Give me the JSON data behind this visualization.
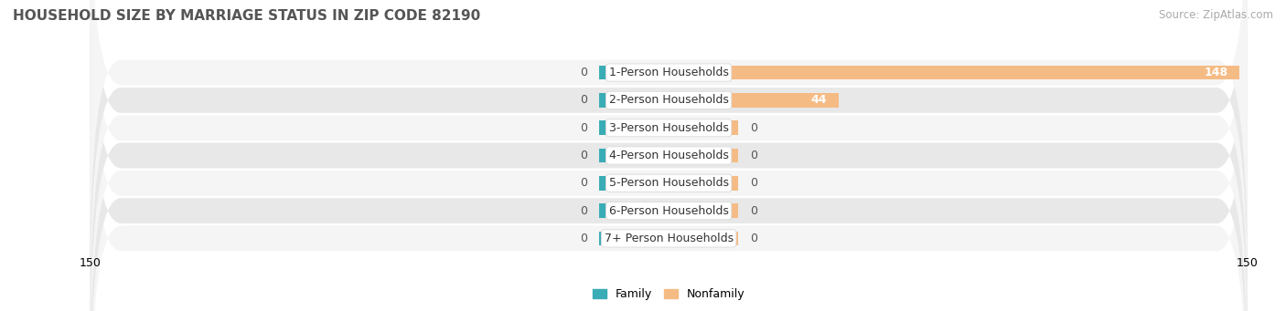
{
  "title": "HOUSEHOLD SIZE BY MARRIAGE STATUS IN ZIP CODE 82190",
  "source": "Source: ZipAtlas.com",
  "categories": [
    "7+ Person Households",
    "6-Person Households",
    "5-Person Households",
    "4-Person Households",
    "3-Person Households",
    "2-Person Households",
    "1-Person Households"
  ],
  "family_values": [
    0,
    0,
    0,
    0,
    0,
    0,
    0
  ],
  "nonfamily_values": [
    0,
    0,
    0,
    0,
    0,
    44,
    148
  ],
  "family_color": "#3aacb5",
  "nonfamily_color": "#f5bb85",
  "row_bg_light": "#f5f5f5",
  "row_bg_dark": "#e8e8e8",
  "xlim": 150,
  "bar_height": 0.52,
  "label_fontsize": 9.0,
  "title_fontsize": 11,
  "source_fontsize": 8.5,
  "min_bar_width": 18
}
